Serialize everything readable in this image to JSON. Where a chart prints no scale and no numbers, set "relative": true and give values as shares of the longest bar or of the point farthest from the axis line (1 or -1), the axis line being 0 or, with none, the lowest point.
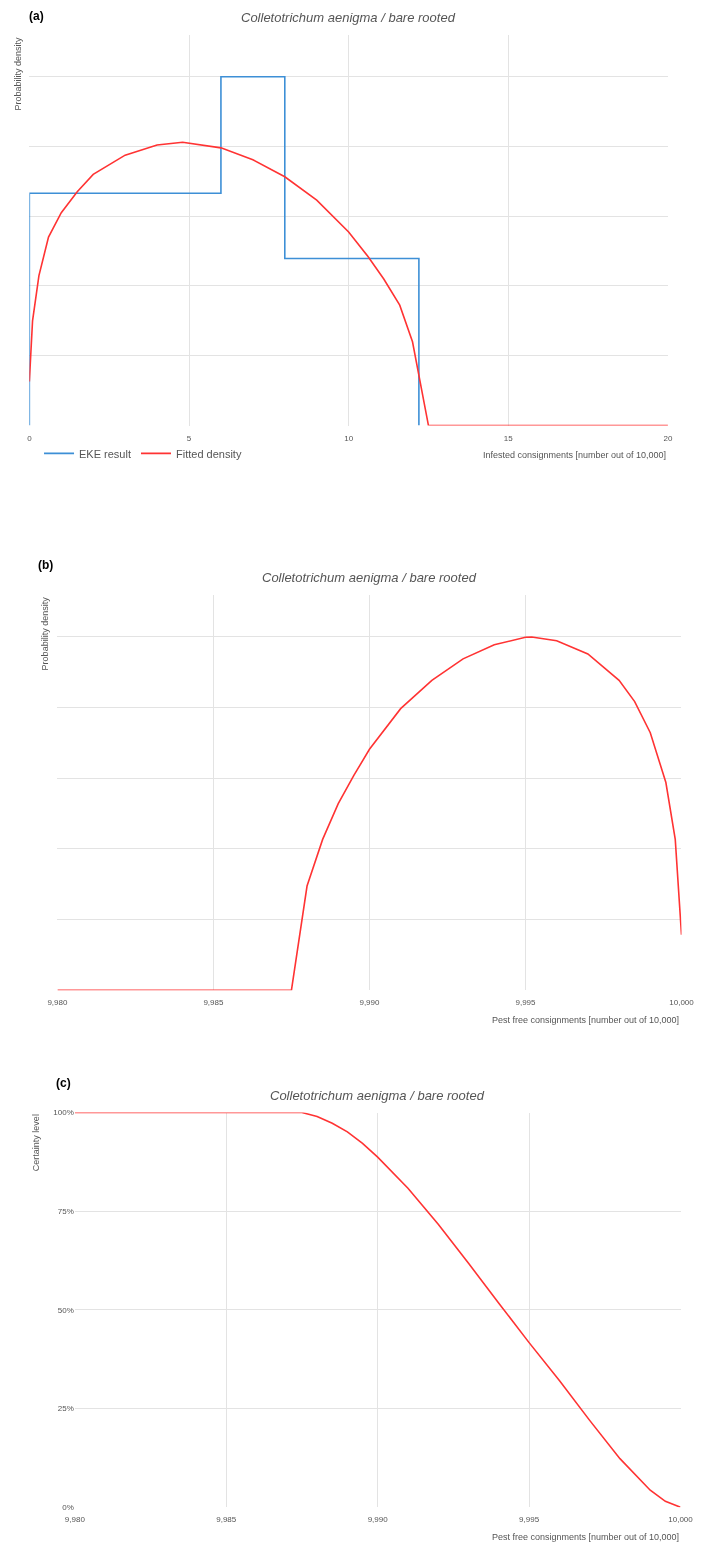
{
  "chart_data": [
    {
      "type": "line",
      "title": "Colletotrichum aenigma / bare rooted",
      "subtitle": "(a)",
      "xlabel": "Infested consignments [number out of 10,000]",
      "ylabel": "Probability density",
      "relative": true,
      "grid": true,
      "legend": "bottom left",
      "xlim": [
        0,
        20
      ],
      "xticks": [
        0,
        5,
        10,
        15,
        20
      ],
      "series": [
        {
          "name": "EKE result",
          "type": "step",
          "color": "#3d8fd6",
          "x": [
            0,
            0,
            6,
            8,
            12.2
          ],
          "values": [
            0,
            0.666,
            1,
            0.479,
            0
          ]
        },
        {
          "name": "Fitted density",
          "type": "line",
          "color": "#ff3333",
          "x": [
            0,
            0.1,
            0.3,
            0.6,
            1,
            1.5,
            2,
            3,
            4,
            4.8,
            6,
            7,
            8,
            9,
            10,
            10.6,
            11.1,
            11.6,
            12.0,
            12.5,
            20
          ],
          "values": [
            0.126,
            0.3,
            0.43,
            0.54,
            0.61,
            0.67,
            0.72,
            0.775,
            0.804,
            0.812,
            0.796,
            0.762,
            0.713,
            0.646,
            0.555,
            0.485,
            0.42,
            0.345,
            0.24,
            0,
            0
          ]
        }
      ]
    },
    {
      "type": "line",
      "title": "Colletotrichum aenigma / bare rooted",
      "subtitle": "(b)",
      "xlabel": "Pest free consignments [number out of 10,000]",
      "ylabel": "Probability density",
      "relative": true,
      "grid": true,
      "xlim": [
        9980,
        10000
      ],
      "xticks": [
        {
          "value": 9980,
          "label": "9,980"
        },
        {
          "value": 9985,
          "label": "9,985"
        },
        {
          "value": 9990,
          "label": "9,990"
        },
        {
          "value": 9995,
          "label": "9,995"
        },
        {
          "value": 10000,
          "label": "10,000"
        }
      ],
      "series": [
        {
          "color": "#ff3333",
          "x": [
            9980,
            9987.5,
            9988,
            9988.5,
            9989,
            9989.5,
            9990,
            9991,
            9992,
            9993,
            9994,
            9995,
            9995.2,
            9996,
            9997,
            9998,
            9998.5,
            9999,
            9999.5,
            9999.8,
            10000
          ],
          "values": [
            0,
            0,
            0.295,
            0.427,
            0.528,
            0.608,
            0.682,
            0.797,
            0.877,
            0.938,
            0.978,
            0.999,
            1,
            0.989,
            0.952,
            0.877,
            0.817,
            0.729,
            0.588,
            0.427,
            0.157
          ]
        }
      ]
    },
    {
      "type": "line",
      "title": "Colletotrichum aenigma / bare rooted",
      "subtitle": "(c)",
      "xlabel": "Pest free consignments [number out of 10,000]",
      "ylabel": "Certainty level",
      "grid": true,
      "xlim": [
        9980,
        10000
      ],
      "xticks": [
        {
          "value": 9980,
          "label": "9,980"
        },
        {
          "value": 9985,
          "label": "9,985"
        },
        {
          "value": 9990,
          "label": "9,990"
        },
        {
          "value": 9995,
          "label": "9,995"
        },
        {
          "value": 10000,
          "label": "10,000"
        }
      ],
      "ylim": [
        0,
        100
      ],
      "yticks": [
        {
          "value": 0,
          "label": "0%"
        },
        {
          "value": 25,
          "label": "25%"
        },
        {
          "value": 50,
          "label": "50%"
        },
        {
          "value": 75,
          "label": "75%"
        },
        {
          "value": 100,
          "label": "100%"
        }
      ],
      "series": [
        {
          "color": "#ff3333",
          "x": [
            9980,
            9987.5,
            9988,
            9988.5,
            9989,
            9989.5,
            9990,
            9991,
            9992,
            9993,
            9994,
            9995,
            9996,
            9997,
            9998,
            9999,
            9999.5,
            10000
          ],
          "values": [
            100,
            100,
            99.0,
            97.3,
            95.1,
            92.2,
            88.7,
            80.8,
            71.7,
            61.8,
            51.7,
            41.7,
            32.1,
            22.0,
            12.3,
            4.3,
            1.5,
            0
          ]
        }
      ]
    }
  ]
}
